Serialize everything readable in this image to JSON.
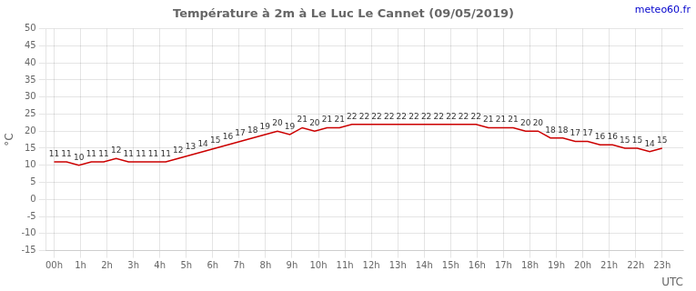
{
  "chart_data": {
    "type": "line",
    "title": "Température à 2m à Le Luc Le Cannet (09/05/2019)",
    "ylabel": "°C",
    "xlabel": "UTC",
    "annotations": [
      {
        "text": "meteo60.fr",
        "color": "#0000cc"
      }
    ],
    "x": [
      0,
      0.469388,
      0.938776,
      1.408163,
      1.877551,
      2.346939,
      2.816327,
      3.285714,
      3.755102,
      4.22449,
      4.693878,
      5.163265,
      5.632653,
      6.102041,
      6.571429,
      7.040816,
      7.510204,
      7.979592,
      8.44898,
      8.918367,
      9.387755,
      9.857143,
      10.326531,
      10.795918,
      11.265306,
      11.734694,
      12.204082,
      12.673469,
      13.142857,
      13.612245,
      14.081633,
      14.55102,
      15.020408,
      15.489796,
      15.959184,
      16.428571,
      16.897959,
      17.367347,
      17.836735,
      18.306122,
      18.77551,
      19.244898,
      19.714286,
      20.183673,
      20.653061,
      21.122449,
      21.591837,
      22.061224,
      22.530612,
      23
    ],
    "values": [
      11,
      11,
      10,
      11,
      11,
      12,
      11,
      11,
      11,
      11,
      12,
      13,
      14,
      15,
      16,
      17,
      18,
      19,
      20,
      19,
      21,
      20,
      21,
      21,
      22,
      22,
      22,
      22,
      22,
      22,
      22,
      22,
      22,
      22,
      22,
      21,
      21,
      21,
      20,
      20,
      18,
      18,
      17,
      17,
      16,
      16,
      15,
      15,
      14,
      15
    ],
    "color": "#cc0000",
    "data_labels": true,
    "xlim": [
      -0.3,
      23.8
    ],
    "xticks": [
      {
        "value": 0,
        "label": "00h"
      },
      {
        "value": 1,
        "label": "1h"
      },
      {
        "value": 2,
        "label": "2h"
      },
      {
        "value": 3,
        "label": "3h"
      },
      {
        "value": 4,
        "label": "4h"
      },
      {
        "value": 5,
        "label": "5h"
      },
      {
        "value": 6,
        "label": "6h"
      },
      {
        "value": 7,
        "label": "7h"
      },
      {
        "value": 8,
        "label": "8h"
      },
      {
        "value": 9,
        "label": "9h"
      },
      {
        "value": 10,
        "label": "10h"
      },
      {
        "value": 11,
        "label": "11h"
      },
      {
        "value": 12,
        "label": "12h"
      },
      {
        "value": 13,
        "label": "13h"
      },
      {
        "value": 14,
        "label": "14h"
      },
      {
        "value": 15,
        "label": "15h"
      },
      {
        "value": 16,
        "label": "16h"
      },
      {
        "value": 17,
        "label": "17h"
      },
      {
        "value": 18,
        "label": "18h"
      },
      {
        "value": 19,
        "label": "19h"
      },
      {
        "value": 20,
        "label": "20h"
      },
      {
        "value": 21,
        "label": "21h"
      },
      {
        "value": 22,
        "label": "22h"
      },
      {
        "value": 23,
        "label": "23h"
      }
    ],
    "ylim": [
      -15,
      50
    ],
    "yticks": [
      -15,
      -10,
      -5,
      0,
      5,
      10,
      15,
      20,
      25,
      30,
      35,
      40,
      45,
      50
    ],
    "grid": true
  }
}
